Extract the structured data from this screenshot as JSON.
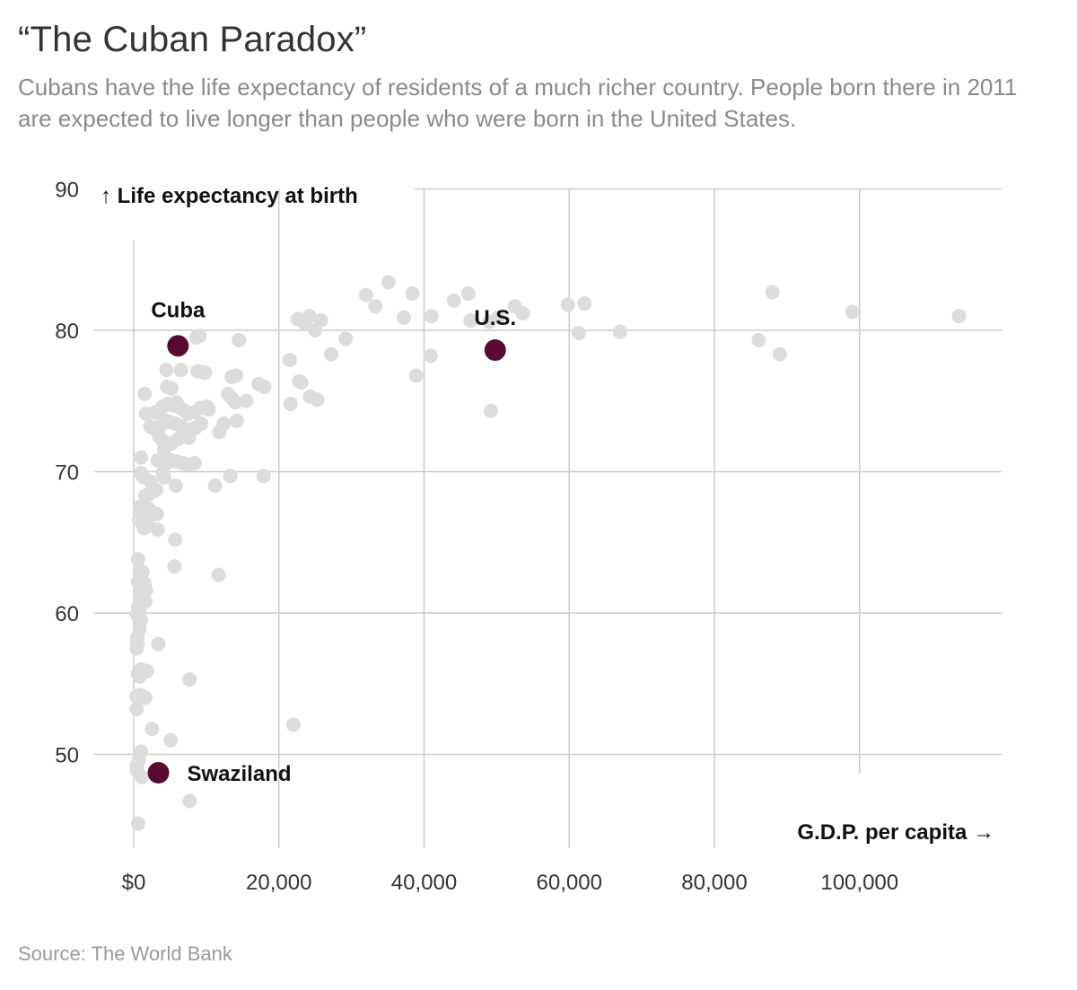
{
  "header": {
    "title": "“The Cuban Paradox”",
    "subtitle": "Cubans have the life expectancy of residents of a much richer country. People born there in 2011 are expected to live longer than people who were born in the United States."
  },
  "footer": {
    "source": "Source: The World Bank"
  },
  "colors": {
    "background_points": "#dcdcdc",
    "highlight_points": "#5a0a32",
    "grid": "#cccccc"
  },
  "chart_data": {
    "type": "scatter",
    "title": "“The Cuban Paradox”",
    "xlabel": "G.D.P. per capita →",
    "ylabel": "↑ Life expectancy at birth",
    "xlim": [
      0,
      120000
    ],
    "ylim": [
      45,
      90
    ],
    "xticks": [
      0,
      20000,
      40000,
      60000,
      80000,
      100000
    ],
    "xtick_labels": [
      "$0",
      "20,000",
      "40,000",
      "60,000",
      "80,000",
      "100,000"
    ],
    "yticks": [
      50,
      60,
      70,
      80,
      90
    ],
    "ytick_labels": [
      "50",
      "60",
      "70",
      "80",
      "90"
    ],
    "grid": true,
    "highlights": [
      {
        "label": "Cuba",
        "x": 6100,
        "y": 78.9
      },
      {
        "label": "U.S.",
        "x": 49800,
        "y": 78.6
      },
      {
        "label": "Swaziland",
        "x": 3400,
        "y": 48.7
      }
    ],
    "points": [
      [
        35100,
        83.4
      ],
      [
        32000,
        82.5
      ],
      [
        38400,
        82.6
      ],
      [
        46100,
        82.6
      ],
      [
        44100,
        82.1
      ],
      [
        59800,
        81.8
      ],
      [
        52500,
        81.7
      ],
      [
        62100,
        81.9
      ],
      [
        88000,
        82.7
      ],
      [
        33300,
        81.7
      ],
      [
        37200,
        80.9
      ],
      [
        41000,
        81.0
      ],
      [
        46400,
        80.7
      ],
      [
        49000,
        80.6
      ],
      [
        50200,
        80.9
      ],
      [
        53600,
        81.2
      ],
      [
        22600,
        80.8
      ],
      [
        23600,
        80.5
      ],
      [
        24200,
        81.0
      ],
      [
        25800,
        80.7
      ],
      [
        25000,
        80.0
      ],
      [
        29200,
        79.4
      ],
      [
        27200,
        78.3
      ],
      [
        21500,
        77.9
      ],
      [
        40900,
        78.2
      ],
      [
        38900,
        76.8
      ],
      [
        61300,
        79.8
      ],
      [
        67000,
        79.9
      ],
      [
        86100,
        79.3
      ],
      [
        89000,
        78.3
      ],
      [
        99000,
        81.3
      ],
      [
        113700,
        81.0
      ],
      [
        49200,
        74.3
      ],
      [
        14500,
        79.3
      ],
      [
        8600,
        79.5
      ],
      [
        9100,
        79.6
      ],
      [
        4500,
        77.2
      ],
      [
        6500,
        77.2
      ],
      [
        8800,
        77.1
      ],
      [
        9800,
        77.0
      ],
      [
        13500,
        76.7
      ],
      [
        14100,
        76.8
      ],
      [
        17200,
        76.2
      ],
      [
        18000,
        76.0
      ],
      [
        22800,
        76.4
      ],
      [
        23100,
        76.3
      ],
      [
        24300,
        75.3
      ],
      [
        25300,
        75.1
      ],
      [
        21600,
        74.8
      ],
      [
        13000,
        75.5
      ],
      [
        13500,
        75.2
      ],
      [
        14000,
        74.9
      ],
      [
        15500,
        75.0
      ],
      [
        12400,
        73.4
      ],
      [
        14200,
        73.6
      ],
      [
        11800,
        72.8
      ],
      [
        11200,
        69.0
      ],
      [
        13300,
        69.7
      ],
      [
        17900,
        69.7
      ],
      [
        11700,
        62.7
      ],
      [
        1500,
        75.5
      ],
      [
        4600,
        76.0
      ],
      [
        5200,
        75.9
      ],
      [
        1700,
        74.1
      ],
      [
        3000,
        74.2
      ],
      [
        3500,
        74.3
      ],
      [
        4000,
        74.6
      ],
      [
        4700,
        74.8
      ],
      [
        5300,
        74.7
      ],
      [
        5900,
        74.9
      ],
      [
        6400,
        74.5
      ],
      [
        7000,
        74.3
      ],
      [
        7500,
        74.1
      ],
      [
        8300,
        74.2
      ],
      [
        9200,
        74.5
      ],
      [
        10300,
        74.4
      ],
      [
        10100,
        74.6
      ],
      [
        2300,
        73.2
      ],
      [
        3000,
        73.0
      ],
      [
        3800,
        73.3
      ],
      [
        4400,
        73.6
      ],
      [
        5000,
        73.5
      ],
      [
        5700,
        73.4
      ],
      [
        6600,
        73.2
      ],
      [
        7200,
        73.0
      ],
      [
        8500,
        73.1
      ],
      [
        9300,
        73.4
      ],
      [
        3500,
        72.5
      ],
      [
        4000,
        72.2
      ],
      [
        5200,
        72.0
      ],
      [
        6100,
        72.3
      ],
      [
        6800,
        72.6
      ],
      [
        7600,
        72.4
      ],
      [
        4200,
        71.6
      ],
      [
        3700,
        70.9
      ],
      [
        3300,
        70.8
      ],
      [
        1000,
        71.0
      ],
      [
        4600,
        70.6
      ],
      [
        5200,
        70.8
      ],
      [
        6000,
        70.7
      ],
      [
        6800,
        70.6
      ],
      [
        7600,
        70.5
      ],
      [
        8400,
        70.6
      ],
      [
        4000,
        69.9
      ],
      [
        1000,
        69.9
      ],
      [
        1300,
        69.6
      ],
      [
        2300,
        69.3
      ],
      [
        4200,
        69.6
      ],
      [
        5800,
        69.0
      ],
      [
        2800,
        68.6
      ],
      [
        3100,
        68.7
      ],
      [
        1600,
        68.3
      ],
      [
        2000,
        68.4
      ],
      [
        800,
        67.5
      ],
      [
        1200,
        67.2
      ],
      [
        1600,
        67.0
      ],
      [
        2000,
        67.4
      ],
      [
        2600,
        67.1
      ],
      [
        3200,
        67.0
      ],
      [
        700,
        66.6
      ],
      [
        1100,
        66.4
      ],
      [
        1500,
        66.2
      ],
      [
        1900,
        66.4
      ],
      [
        1400,
        66.0
      ],
      [
        3300,
        65.9
      ],
      [
        5700,
        65.2
      ],
      [
        5600,
        63.3
      ],
      [
        600,
        63.8
      ],
      [
        800,
        63.0
      ],
      [
        1200,
        62.9
      ],
      [
        1000,
        62.5
      ],
      [
        600,
        62.2
      ],
      [
        800,
        61.9
      ],
      [
        1100,
        61.8
      ],
      [
        1500,
        62.1
      ],
      [
        1700,
        61.6
      ],
      [
        900,
        61.3
      ],
      [
        1300,
        61.0
      ],
      [
        1600,
        60.8
      ],
      [
        600,
        60.4
      ],
      [
        800,
        60.1
      ],
      [
        400,
        59.9
      ],
      [
        1000,
        59.5
      ],
      [
        800,
        58.9
      ],
      [
        500,
        58.3
      ],
      [
        500,
        57.9
      ],
      [
        400,
        57.5
      ],
      [
        3400,
        57.8
      ],
      [
        1000,
        56.0
      ],
      [
        600,
        55.7
      ],
      [
        800,
        55.5
      ],
      [
        1800,
        55.9
      ],
      [
        7700,
        55.3
      ],
      [
        400,
        54.1
      ],
      [
        900,
        54.2
      ],
      [
        1600,
        54.0
      ],
      [
        400,
        53.2
      ],
      [
        2500,
        51.8
      ],
      [
        22000,
        52.1
      ],
      [
        5100,
        51.0
      ],
      [
        1000,
        50.2
      ],
      [
        700,
        49.6
      ],
      [
        400,
        49.2
      ],
      [
        500,
        48.8
      ],
      [
        1100,
        48.4
      ],
      [
        7700,
        46.7
      ],
      [
        600,
        45.1
      ]
    ]
  }
}
